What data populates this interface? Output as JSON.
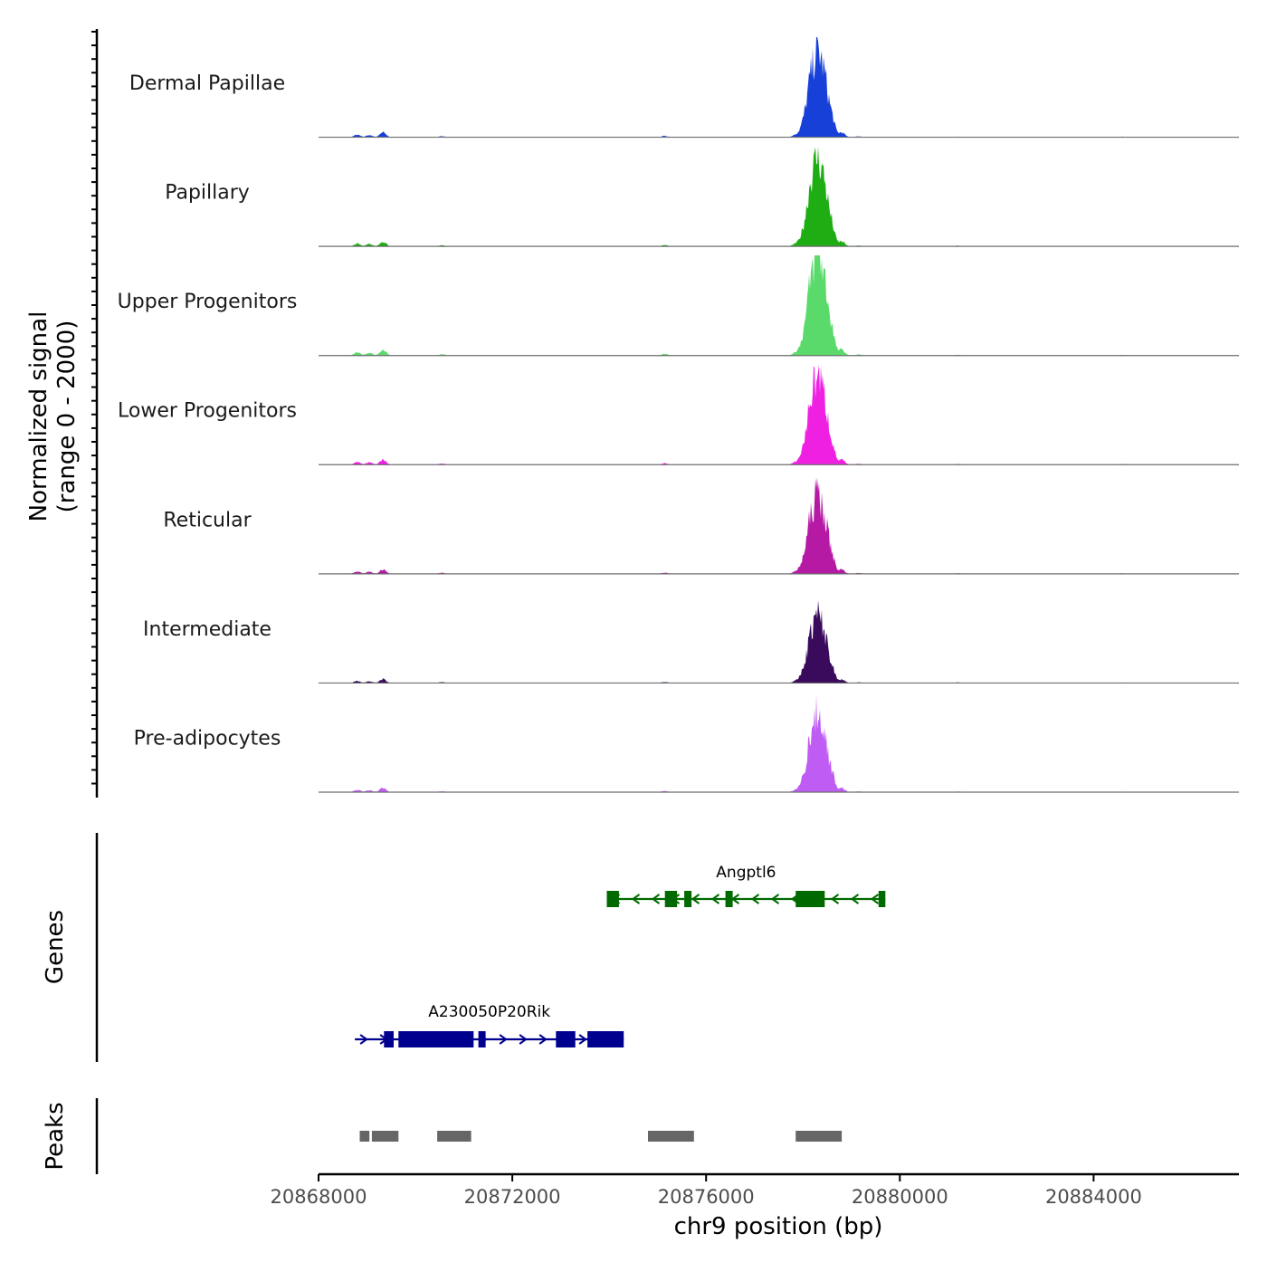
{
  "chart_data": {
    "type": "area",
    "y_axis_title_line1": "Normalized signal",
    "y_axis_title_line2": "(range 0 - 2000)",
    "y_range": [
      0,
      2000
    ],
    "x_axis_title": "chr9 position (bp)",
    "x_range": [
      20868000,
      20887000
    ],
    "x_ticks": [
      20868000,
      20872000,
      20876000,
      20880000,
      20884000
    ],
    "x_tick_labels": [
      "20868000",
      "20872000",
      "20876000",
      "20880000",
      "20884000"
    ],
    "peak_profile": [
      [
        20868800,
        60
      ],
      [
        20869050,
        50
      ],
      [
        20869330,
        110
      ],
      [
        20870550,
        25
      ],
      [
        20875150,
        30
      ],
      [
        20877850,
        60
      ],
      [
        20878000,
        250
      ],
      [
        20878150,
        1150
      ],
      [
        20878300,
        1650
      ],
      [
        20878450,
        1200
      ],
      [
        20878600,
        380
      ],
      [
        20878800,
        110
      ],
      [
        20879150,
        20
      ],
      [
        20881200,
        15
      ],
      [
        20884600,
        12
      ]
    ],
    "series": [
      {
        "name": "Dermal Papillae",
        "color": "#1740d9",
        "peak_scale": 0.82
      },
      {
        "name": "Papillary",
        "color": "#1ead12",
        "peak_scale": 0.85
      },
      {
        "name": "Upper Progenitors",
        "color": "#5ada6b",
        "peak_scale": 1.0
      },
      {
        "name": "Lower Progenitors",
        "color": "#f020e3",
        "peak_scale": 0.86
      },
      {
        "name": "Reticular",
        "color": "#b61aa5",
        "peak_scale": 0.76
      },
      {
        "name": "Intermediate",
        "color": "#3a0b5c",
        "peak_scale": 0.65
      },
      {
        "name": "Pre-adipocytes",
        "color": "#bf5cf3",
        "peak_scale": 0.75
      }
    ],
    "genes_track_label": "Genes",
    "genes": [
      {
        "name": "Angptl6",
        "strand": "-",
        "start": 20873950,
        "end": 20879700,
        "color": "#006a00",
        "exons": [
          [
            20873950,
            20874200
          ],
          [
            20875150,
            20875400
          ],
          [
            20875550,
            20875700
          ],
          [
            20876400,
            20876550
          ],
          [
            20877850,
            20878450
          ],
          [
            20879560,
            20879700
          ]
        ]
      },
      {
        "name": "A230050P20Rik",
        "strand": "+",
        "start": 20868750,
        "end": 20874300,
        "color": "#00008f",
        "exons": [
          [
            20869350,
            20869550
          ],
          [
            20869650,
            20871200
          ],
          [
            20871300,
            20871450
          ],
          [
            20872900,
            20873300
          ],
          [
            20873550,
            20874300
          ]
        ]
      }
    ],
    "peaks_track_label": "Peaks",
    "peaks": [
      [
        20868850,
        20869050
      ],
      [
        20869100,
        20869650
      ],
      [
        20870450,
        20871150
      ],
      [
        20874800,
        20875750
      ],
      [
        20877850,
        20878800
      ]
    ]
  }
}
